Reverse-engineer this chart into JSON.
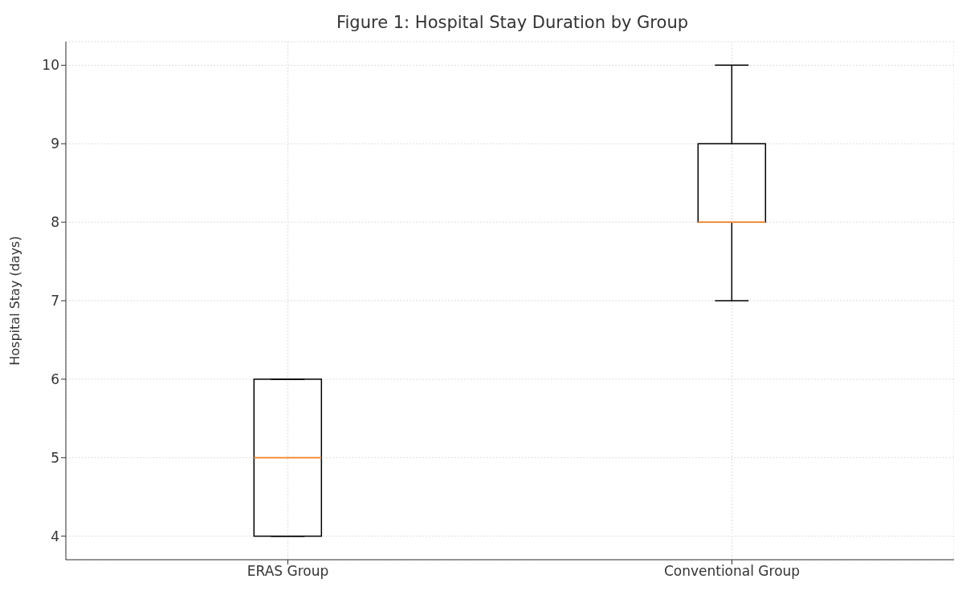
{
  "chart_data": {
    "type": "box",
    "title": "Figure 1: Hospital Stay Duration by Group",
    "ylabel": "Hospital Stay (days)",
    "categories": [
      "ERAS Group",
      "Conventional Group"
    ],
    "boxes": [
      {
        "low": 4,
        "q1": 4,
        "median": 5,
        "q3": 6,
        "high": 6
      },
      {
        "low": 7,
        "q1": 8,
        "median": 8,
        "q3": 9,
        "high": 10
      }
    ],
    "color": "#000000",
    "ylim": [
      3.7,
      10.3
    ],
    "yticks": [
      4,
      5,
      6,
      7,
      8,
      9,
      10
    ],
    "grid": true
  }
}
